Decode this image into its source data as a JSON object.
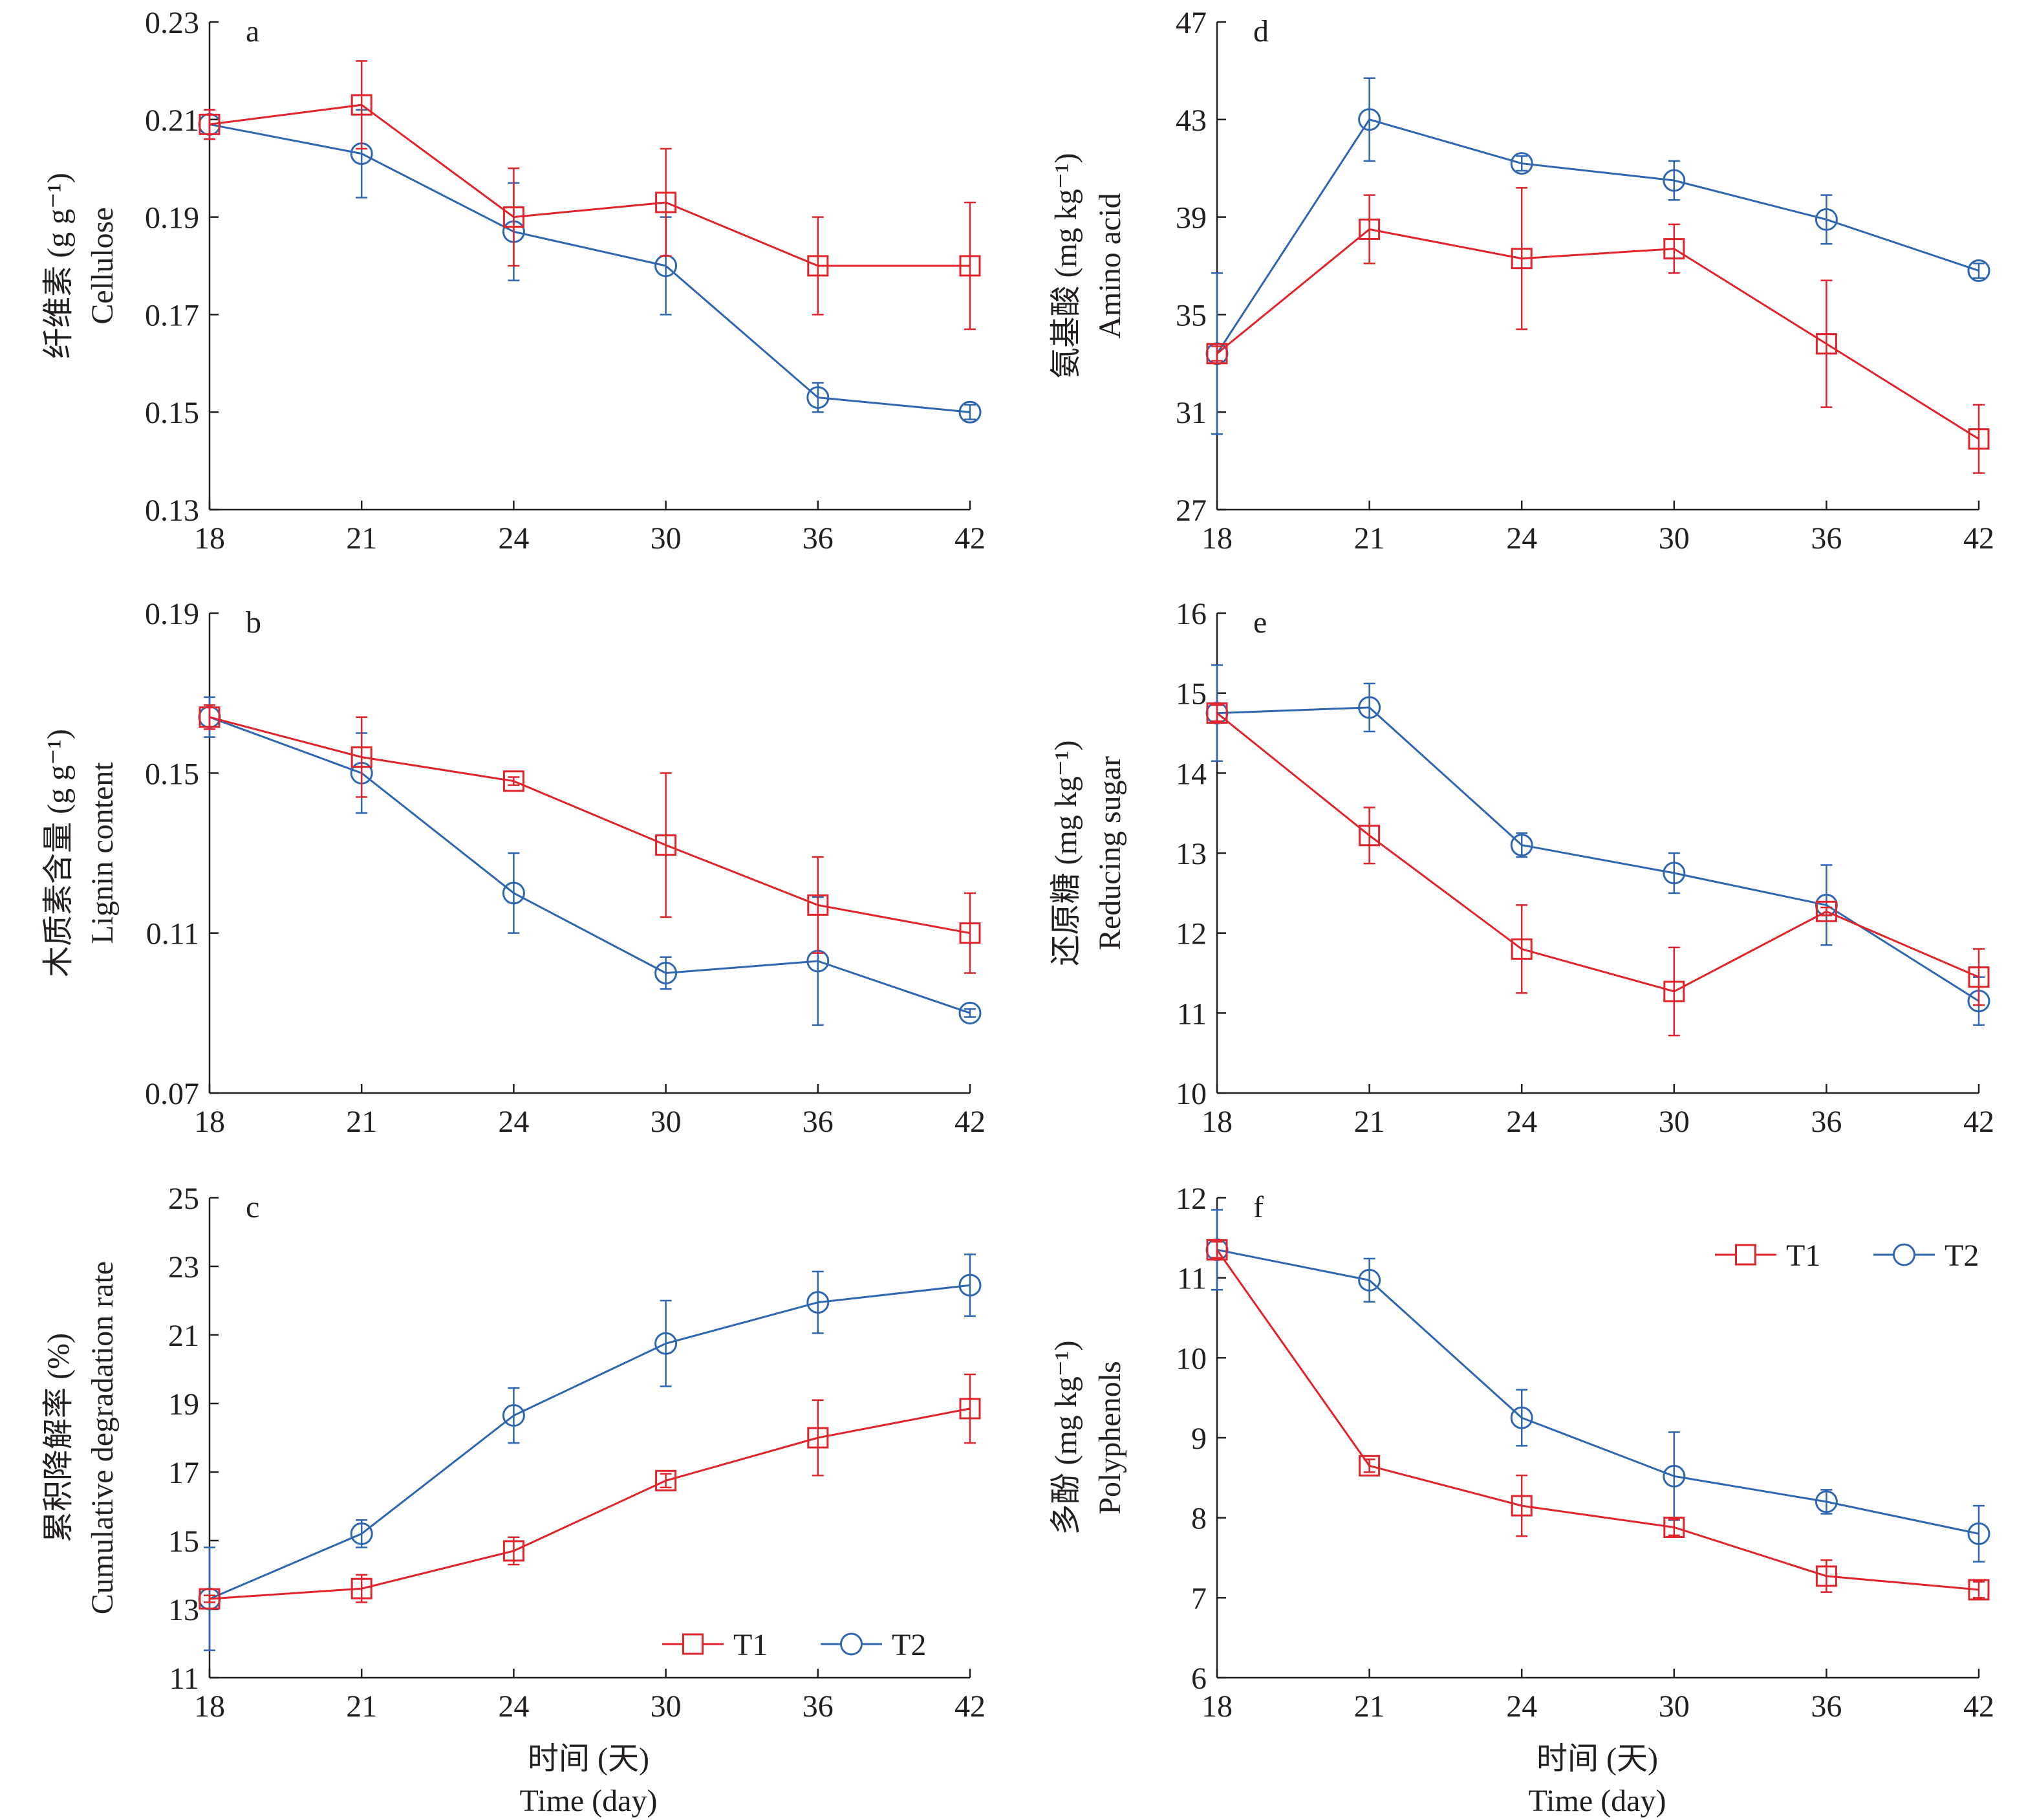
{
  "colors": {
    "T1": "#e0242b",
    "T2": "#2e66b0",
    "axis": "#231f20"
  },
  "x_labels": {
    "zh": "时间 (天)",
    "en": "Time (day)"
  },
  "chart_data": [
    {
      "type": "line",
      "panel": "a",
      "categories": [
        "18",
        "21",
        "24",
        "30",
        "36",
        "42"
      ],
      "ylabel_zh": "纤维素 (g g⁻¹)",
      "ylabel_en": "Cellulose",
      "ylim": [
        0.13,
        0.23
      ],
      "yticks": [
        "0.13",
        "0.15",
        "0.17",
        "0.19",
        "0.21",
        "0.23"
      ],
      "series": [
        {
          "name": "T1",
          "marker": "square",
          "values": [
            0.209,
            0.213,
            0.19,
            0.193,
            0.18,
            0.18
          ],
          "err": [
            0.003,
            0.009,
            0.01,
            0.011,
            0.01,
            0.013
          ]
        },
        {
          "name": "T2",
          "marker": "circle",
          "values": [
            0.209,
            0.203,
            0.187,
            0.18,
            0.153,
            0.15
          ],
          "err": [
            0.003,
            0.009,
            0.01,
            0.01,
            0.003,
            0.0015
          ]
        }
      ],
      "legend": "none"
    },
    {
      "type": "line",
      "panel": "b",
      "categories": [
        "18",
        "21",
        "24",
        "30",
        "36",
        "42"
      ],
      "ylabel_zh": "木质素含量 (g g⁻¹)",
      "ylabel_en": "Lignin content",
      "ylim": [
        0.07,
        0.19
      ],
      "yticks": [
        "0.07",
        "0.11",
        "0.15",
        "0.19"
      ],
      "series": [
        {
          "name": "T1",
          "marker": "square",
          "values": [
            0.164,
            0.154,
            0.148,
            0.132,
            0.117,
            0.11
          ],
          "err": [
            0.003,
            0.01,
            0.001,
            0.018,
            0.012,
            0.01
          ]
        },
        {
          "name": "T2",
          "marker": "circle",
          "values": [
            0.164,
            0.15,
            0.12,
            0.1,
            0.103,
            0.09
          ],
          "err": [
            0.005,
            0.01,
            0.01,
            0.004,
            0.016,
            0.001
          ]
        }
      ],
      "legend": "none"
    },
    {
      "type": "line",
      "panel": "c",
      "categories": [
        "18",
        "21",
        "24",
        "30",
        "36",
        "42"
      ],
      "ylabel_zh": "累积降解率 (%)",
      "ylabel_en": "Cumulative degradation rate",
      "ylim": [
        11,
        25
      ],
      "yticks": [
        "11",
        "13",
        "15",
        "17",
        "19",
        "21",
        "23",
        "25"
      ],
      "series": [
        {
          "name": "T1",
          "marker": "square",
          "values": [
            13.3,
            13.6,
            14.7,
            16.75,
            18.0,
            18.85
          ],
          "err": [
            0.1,
            0.4,
            0.4,
            0.2,
            1.1,
            1.0
          ]
        },
        {
          "name": "T2",
          "marker": "circle",
          "values": [
            13.3,
            15.2,
            18.65,
            20.75,
            21.95,
            22.45
          ],
          "err": [
            1.5,
            0.4,
            0.8,
            1.25,
            0.9,
            0.9
          ]
        }
      ],
      "legend": "bottom-right"
    },
    {
      "type": "line",
      "panel": "d",
      "categories": [
        "18",
        "21",
        "24",
        "30",
        "36",
        "42"
      ],
      "ylabel_zh": "氨基酸 (mg kg⁻¹)",
      "ylabel_en": "Amino acid",
      "ylim": [
        27,
        47
      ],
      "yticks": [
        "27",
        "31",
        "35",
        "39",
        "43",
        "47"
      ],
      "series": [
        {
          "name": "T1",
          "marker": "square",
          "values": [
            33.4,
            38.5,
            37.3,
            37.7,
            33.8,
            29.9
          ],
          "err": [
            0.3,
            1.4,
            2.9,
            1.0,
            2.6,
            1.4
          ]
        },
        {
          "name": "T2",
          "marker": "circle",
          "values": [
            33.4,
            43.0,
            41.2,
            40.5,
            38.9,
            36.8
          ],
          "err": [
            3.3,
            1.7,
            0.3,
            0.8,
            1.0,
            0.3
          ]
        }
      ],
      "legend": "none"
    },
    {
      "type": "line",
      "panel": "e",
      "categories": [
        "18",
        "21",
        "24",
        "30",
        "36",
        "42"
      ],
      "ylabel_zh": "还原糖 (mg kg⁻¹)",
      "ylabel_en": "Reducing sugar",
      "ylim": [
        10,
        16
      ],
      "yticks": [
        "10",
        "11",
        "12",
        "13",
        "14",
        "15",
        "16"
      ],
      "series": [
        {
          "name": "T1",
          "marker": "square",
          "values": [
            14.75,
            13.22,
            11.8,
            11.27,
            12.27,
            11.45
          ],
          "err": [
            0.1,
            0.35,
            0.55,
            0.55,
            0.05,
            0.35
          ]
        },
        {
          "name": "T2",
          "marker": "circle",
          "values": [
            14.75,
            14.82,
            13.1,
            12.75,
            12.35,
            11.15
          ],
          "err": [
            0.6,
            0.3,
            0.15,
            0.25,
            0.5,
            0.3
          ]
        }
      ],
      "legend": "none"
    },
    {
      "type": "line",
      "panel": "f",
      "categories": [
        "18",
        "21",
        "24",
        "30",
        "36",
        "42"
      ],
      "ylabel_zh": "多酚 (mg kg⁻¹)",
      "ylabel_en": "Polyphenols",
      "ylim": [
        6,
        12
      ],
      "yticks": [
        "6",
        "7",
        "8",
        "9",
        "10",
        "11",
        "12"
      ],
      "series": [
        {
          "name": "T1",
          "marker": "square",
          "values": [
            11.35,
            8.65,
            8.15,
            7.88,
            7.27,
            7.1
          ],
          "err": [
            0.1,
            0.08,
            0.38,
            0.1,
            0.2,
            0.1
          ]
        },
        {
          "name": "T2",
          "marker": "circle",
          "values": [
            11.35,
            10.97,
            9.25,
            8.52,
            8.2,
            7.8
          ],
          "err": [
            0.5,
            0.27,
            0.35,
            0.55,
            0.15,
            0.35
          ]
        }
      ],
      "legend": "top-right"
    }
  ]
}
